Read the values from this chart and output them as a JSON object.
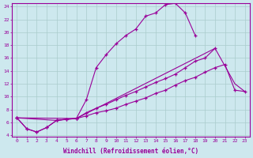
{
  "xlabel": "Windchill (Refroidissement éolien,°C)",
  "background_color": "#cde8ee",
  "line_color": "#990099",
  "grid_color": "#aacccc",
  "xmin": 0,
  "xmax": 23,
  "ymin": 4,
  "ymax": 24,
  "yticks": [
    4,
    6,
    8,
    10,
    12,
    14,
    16,
    18,
    20,
    22,
    24
  ],
  "xticks": [
    0,
    1,
    2,
    3,
    4,
    5,
    6,
    7,
    8,
    9,
    10,
    11,
    12,
    13,
    14,
    15,
    16,
    17,
    18,
    19,
    20,
    21,
    22,
    23
  ],
  "line1_x": [
    0,
    1,
    2,
    3,
    4,
    5,
    6,
    7,
    8,
    9,
    10,
    11,
    12,
    13,
    14,
    15,
    16,
    17,
    18
  ],
  "line1_y": [
    6.7,
    5.0,
    4.5,
    5.2,
    6.3,
    6.5,
    6.6,
    9.5,
    14.5,
    16.5,
    18.2,
    19.5,
    20.5,
    22.5,
    23.0,
    24.3,
    24.5,
    23.0,
    19.5
  ],
  "line2_x": [
    0,
    1,
    2,
    3,
    4,
    5,
    6,
    7,
    8,
    9,
    10,
    11,
    12,
    13,
    14,
    15,
    16,
    17,
    18,
    19,
    20
  ],
  "line2_y": [
    6.7,
    5.0,
    4.5,
    5.2,
    6.3,
    6.5,
    6.6,
    7.5,
    8.2,
    8.8,
    9.5,
    10.2,
    10.8,
    11.5,
    12.2,
    12.8,
    13.5,
    14.5,
    15.5,
    16.0,
    17.5
  ],
  "line3_x": [
    0,
    4,
    6,
    7,
    8,
    9,
    10,
    11,
    12,
    13,
    14,
    15,
    16,
    17,
    18,
    19,
    20,
    21,
    22,
    23
  ],
  "line3_y": [
    6.7,
    6.3,
    6.6,
    7.0,
    7.5,
    7.8,
    8.2,
    8.8,
    9.3,
    9.8,
    10.5,
    11.0,
    11.8,
    12.5,
    13.0,
    13.8,
    14.5,
    15.0,
    11.0,
    10.8
  ],
  "line4_x": [
    0,
    6,
    20,
    22,
    23
  ],
  "line4_y": [
    6.7,
    6.6,
    17.5,
    12.0,
    10.8
  ]
}
